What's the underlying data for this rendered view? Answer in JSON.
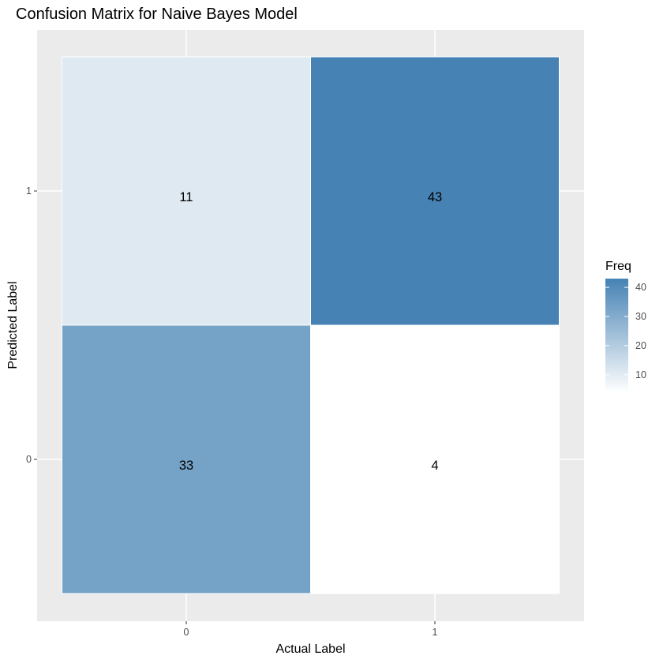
{
  "chart_data": {
    "type": "heatmap",
    "title": "Confusion Matrix for Naive Bayes Model",
    "xlabel": "Actual Label",
    "ylabel": "Predicted Label",
    "x_categories": [
      "0",
      "1"
    ],
    "y_categories": [
      "0",
      "1"
    ],
    "cells": [
      {
        "actual": "0",
        "predicted": "0",
        "value": 33
      },
      {
        "actual": "1",
        "predicted": "0",
        "value": 4
      },
      {
        "actual": "0",
        "predicted": "1",
        "value": 11
      },
      {
        "actual": "1",
        "predicted": "1",
        "value": 43
      }
    ],
    "legend": {
      "title": "Freq",
      "ticks": [
        10,
        20,
        30,
        40
      ],
      "range": [
        4,
        43
      ],
      "low_color": "#ffffff",
      "high_color": "#4682b4",
      "position": "right"
    },
    "panel_background": "#ebebeb",
    "grid_color": "#ffffff",
    "grid": true
  }
}
